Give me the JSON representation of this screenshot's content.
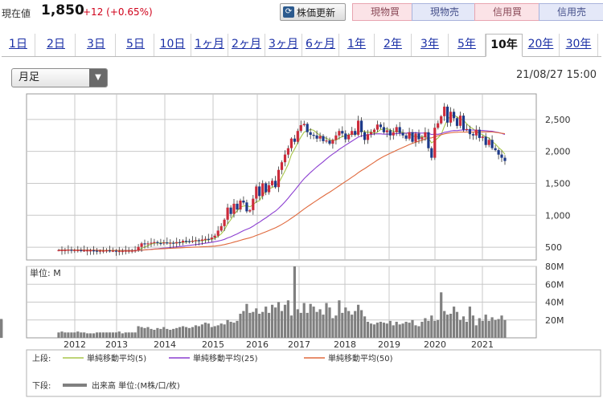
{
  "quote": {
    "label": "現在値",
    "price": "1,850",
    "change": "+12 (+0.65%)"
  },
  "toolbar": {
    "update_icon": "refresh-icon",
    "update_label": "株価更新",
    "buttons": [
      "現物買",
      "現物売",
      "信用買",
      "信用売"
    ],
    "colors": {
      "buy": "#fbe3e7",
      "sell": "#e4e8f8"
    }
  },
  "tabs": {
    "items": [
      "1日",
      "2日",
      "3日",
      "5日",
      "10日",
      "1ヶ月",
      "2ヶ月",
      "3ヶ月",
      "6ヶ月",
      "1年",
      "2年",
      "3年",
      "5年",
      "10年",
      "20年",
      "30年"
    ],
    "active": "10年"
  },
  "period_select": {
    "value": "月足"
  },
  "timestamp": "21/08/27 15:00",
  "chart_data": {
    "type": "candlestick",
    "x_labels": [
      "2012",
      "2013",
      "2014",
      "2015",
      "2016",
      "2017",
      "2018",
      "2019",
      "2020",
      "2021"
    ],
    "price_axis": {
      "ticks": [
        "2,500",
        "2,000",
        "1,500",
        "1,000",
        "500"
      ],
      "tick_values": [
        2500,
        2000,
        1500,
        1000,
        500
      ],
      "range": [
        300,
        2900
      ]
    },
    "volume_axis": {
      "unit_label": "単位: M",
      "ticks": [
        "80M",
        "60M",
        "40M",
        "20M"
      ],
      "tick_values": [
        80,
        60,
        40,
        20
      ],
      "range": [
        0,
        80
      ]
    },
    "colors": {
      "up": "#cc2b3b",
      "down": "#1d3a8a",
      "ma5": "#a8c64a",
      "ma25": "#8c3fd1",
      "ma50": "#e06a3e",
      "volume": "#808080"
    },
    "legend": {
      "upper_label": "上段:",
      "lower_label": "下段:",
      "items": [
        {
          "name": "単純移動平均(5)",
          "color": "#a8c64a"
        },
        {
          "name": "単純移動平均(25)",
          "color": "#8c3fd1"
        },
        {
          "name": "単純移動平均(50)",
          "color": "#e06a3e"
        }
      ],
      "volume": "出来高 単位:(M株/口/枚)"
    },
    "price": [
      455,
      455,
      455,
      460,
      455,
      455,
      455,
      450,
      450,
      450,
      450,
      445,
      440,
      445,
      445,
      450,
      445,
      445,
      440,
      440,
      440,
      445,
      445,
      445,
      450,
      505,
      560,
      550,
      560,
      570,
      580,
      565,
      560,
      575,
      560,
      570,
      560,
      580,
      575,
      600,
      595,
      590,
      600,
      610,
      600,
      620,
      630,
      625,
      650,
      680,
      760,
      830,
      930,
      1120,
      1020,
      1180,
      1090,
      1230,
      1200,
      1060,
      1080,
      1260,
      1450,
      1300,
      1500,
      1360,
      1470,
      1540,
      1440,
      1710,
      1830,
      1950,
      2050,
      2200,
      2150,
      2320,
      2410,
      2430,
      2300,
      2260,
      2250,
      2200,
      2240,
      2160,
      2170,
      2120,
      2180,
      2250,
      2320,
      2280,
      2190,
      2260,
      2320,
      2260,
      2480,
      2300,
      2180,
      2270,
      2300,
      2340,
      2420,
      2380,
      2300,
      2330,
      2250,
      2300,
      2380,
      2290,
      2250,
      2200,
      2300,
      2150,
      2280,
      2190,
      2220,
      2300,
      2050,
      1900,
      2370,
      2440,
      2550,
      2700,
      2450,
      2620,
      2520,
      2400,
      2560,
      2340,
      2350,
      2270,
      2250,
      2340,
      2210,
      2230,
      2100,
      2180,
      2050,
      2020,
      1950,
      1900,
      1850
    ],
    "volume": [
      6,
      7,
      6,
      6,
      6,
      6,
      7,
      6,
      6,
      5,
      5,
      5,
      6,
      6,
      6,
      6,
      6,
      6,
      6,
      7,
      5,
      6,
      6,
      6,
      6,
      13,
      12,
      11,
      12,
      10,
      9,
      11,
      10,
      12,
      10,
      9,
      10,
      11,
      12,
      13,
      12,
      11,
      12,
      14,
      13,
      15,
      17,
      16,
      12,
      13,
      14,
      16,
      15,
      20,
      18,
      17,
      19,
      27,
      30,
      38,
      28,
      29,
      33,
      27,
      29,
      35,
      28,
      37,
      34,
      40,
      30,
      37,
      42,
      25,
      80,
      32,
      28,
      39,
      28,
      38,
      35,
      29,
      32,
      26,
      39,
      34,
      22,
      25,
      42,
      28,
      34,
      30,
      26,
      30,
      37,
      31,
      24,
      18,
      16,
      15,
      17,
      18,
      17,
      16,
      19,
      14,
      18,
      15,
      16,
      18,
      17,
      20,
      14,
      13,
      18,
      22,
      19,
      25,
      19,
      20,
      51,
      30,
      26,
      27,
      35,
      29,
      20,
      24,
      18,
      35,
      25,
      14,
      22,
      19,
      26,
      19,
      23,
      20,
      21,
      25,
      20,
      21,
      19,
      21,
      20
    ]
  }
}
